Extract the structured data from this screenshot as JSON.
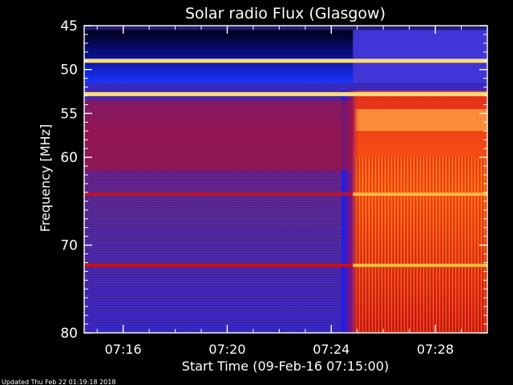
{
  "chart_data": {
    "type": "heatmap",
    "title": "Solar radio Flux (Glasgow)",
    "xlabel": "Start Time (09-Feb-16 07:15:00)",
    "ylabel": "Frequency [MHz]",
    "x_unit": "time (HH:MM)",
    "y_unit": "MHz",
    "xlim": [
      "07:14:30",
      "07:30:00"
    ],
    "ylim": [
      45,
      80
    ],
    "xticks": [
      "07:16",
      "07:20",
      "07:24",
      "07:28"
    ],
    "yticks": [
      45,
      50,
      55,
      60,
      70,
      80
    ],
    "colormap": "blue-purple-red-yellow (low to high flux)",
    "features": {
      "onset_time": "07:24:50",
      "bright_bands_mhz": [
        49.0,
        52.8,
        64.2,
        72.3
      ],
      "low_band_mhz": [
        45.5,
        51.5
      ]
    }
  },
  "footer": {
    "updated": "Updated Thu Feb 22 01:19:18 2018"
  }
}
